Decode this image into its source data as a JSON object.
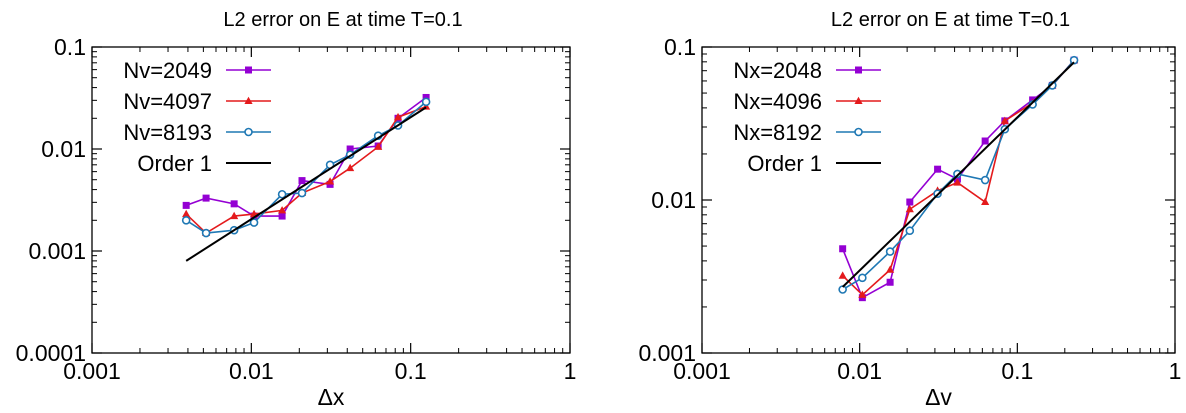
{
  "chart_data": [
    {
      "type": "line",
      "title": "L2 error on E at time T=0.1",
      "xlabel": "Δx",
      "ylabel": "",
      "xscale": "log",
      "yscale": "log",
      "xlim": [
        0.001,
        1
      ],
      "ylim": [
        0.0001,
        0.1
      ],
      "xticks": [
        "0.001",
        "0.01",
        "0.1",
        "1"
      ],
      "yticks": [
        "0.0001",
        "0.001",
        "0.01",
        "0.1"
      ],
      "grid": false,
      "legend_position": "top-left",
      "series": [
        {
          "name": "Nv=2049",
          "color": "#9400d3",
          "marker": "square",
          "x": [
            0.0039,
            0.0052,
            0.0078,
            0.0104,
            0.0156,
            0.0208,
            0.0312,
            0.0417,
            0.0625,
            0.0833,
            0.125
          ],
          "y": [
            0.0028,
            0.0033,
            0.0029,
            0.0022,
            0.0022,
            0.0049,
            0.0045,
            0.01,
            0.0107,
            0.02,
            0.032
          ]
        },
        {
          "name": "Nv=4097",
          "color": "#e41a1c",
          "marker": "triangle",
          "x": [
            0.0039,
            0.0052,
            0.0078,
            0.0104,
            0.0156,
            0.0208,
            0.0312,
            0.0417,
            0.0625,
            0.0833,
            0.125
          ],
          "y": [
            0.0023,
            0.0015,
            0.0022,
            0.0023,
            0.0025,
            0.0037,
            0.0048,
            0.0065,
            0.0105,
            0.0205,
            0.026
          ]
        },
        {
          "name": "Nv=8193",
          "color": "#1f78b4",
          "marker": "circle",
          "x": [
            0.0039,
            0.0052,
            0.0078,
            0.0104,
            0.0156,
            0.0208,
            0.0312,
            0.0417,
            0.0625,
            0.0833,
            0.125
          ],
          "y": [
            0.002,
            0.0015,
            0.0016,
            0.0019,
            0.0036,
            0.0037,
            0.007,
            0.0088,
            0.0135,
            0.017,
            0.029
          ]
        },
        {
          "name": "Order 1",
          "color": "#000000",
          "marker": "none",
          "x": [
            0.0039,
            0.125
          ],
          "y": [
            0.0008,
            0.0256
          ]
        }
      ]
    },
    {
      "type": "line",
      "title": "L2 error on E at time T=0.1",
      "xlabel": "Δv",
      "ylabel": "",
      "xscale": "log",
      "yscale": "log",
      "xlim": [
        0.001,
        1
      ],
      "ylim": [
        0.001,
        0.1
      ],
      "xticks": [
        "0.001",
        "0.01",
        "0.1",
        "1"
      ],
      "yticks": [
        "0.001",
        "0.01",
        "0.1"
      ],
      "grid": false,
      "legend_position": "top-left",
      "series": [
        {
          "name": "Nx=2048",
          "color": "#9400d3",
          "marker": "square",
          "x": [
            0.0078,
            0.0104,
            0.0156,
            0.0208,
            0.0312,
            0.0417,
            0.0625,
            0.0833,
            0.125,
            0.1667,
            0.229
          ],
          "y": [
            0.0048,
            0.0023,
            0.0029,
            0.0097,
            0.0159,
            0.0137,
            0.0243,
            0.0329,
            0.0451,
            0.0561,
            0.082
          ]
        },
        {
          "name": "Nx=4096",
          "color": "#e41a1c",
          "marker": "triangle",
          "x": [
            0.0078,
            0.0104,
            0.0156,
            0.0208,
            0.0312,
            0.0417,
            0.0625,
            0.0833,
            0.125,
            0.1667,
            0.229
          ],
          "y": [
            0.0032,
            0.0024,
            0.0035,
            0.0087,
            0.0115,
            0.013,
            0.0097,
            0.0329,
            0.0431,
            0.0561,
            0.082
          ]
        },
        {
          "name": "Nx=8192",
          "color": "#1f78b4",
          "marker": "circle",
          "x": [
            0.0078,
            0.0104,
            0.0156,
            0.0208,
            0.0312,
            0.0417,
            0.0625,
            0.0833,
            0.125,
            0.1667,
            0.229
          ],
          "y": [
            0.0026,
            0.0031,
            0.0046,
            0.0063,
            0.011,
            0.0148,
            0.0135,
            0.029,
            0.0421,
            0.0561,
            0.082
          ]
        },
        {
          "name": "Order 1",
          "color": "#000000",
          "marker": "none",
          "x": [
            0.0078,
            0.229
          ],
          "y": [
            0.0027,
            0.0795
          ]
        }
      ]
    }
  ]
}
